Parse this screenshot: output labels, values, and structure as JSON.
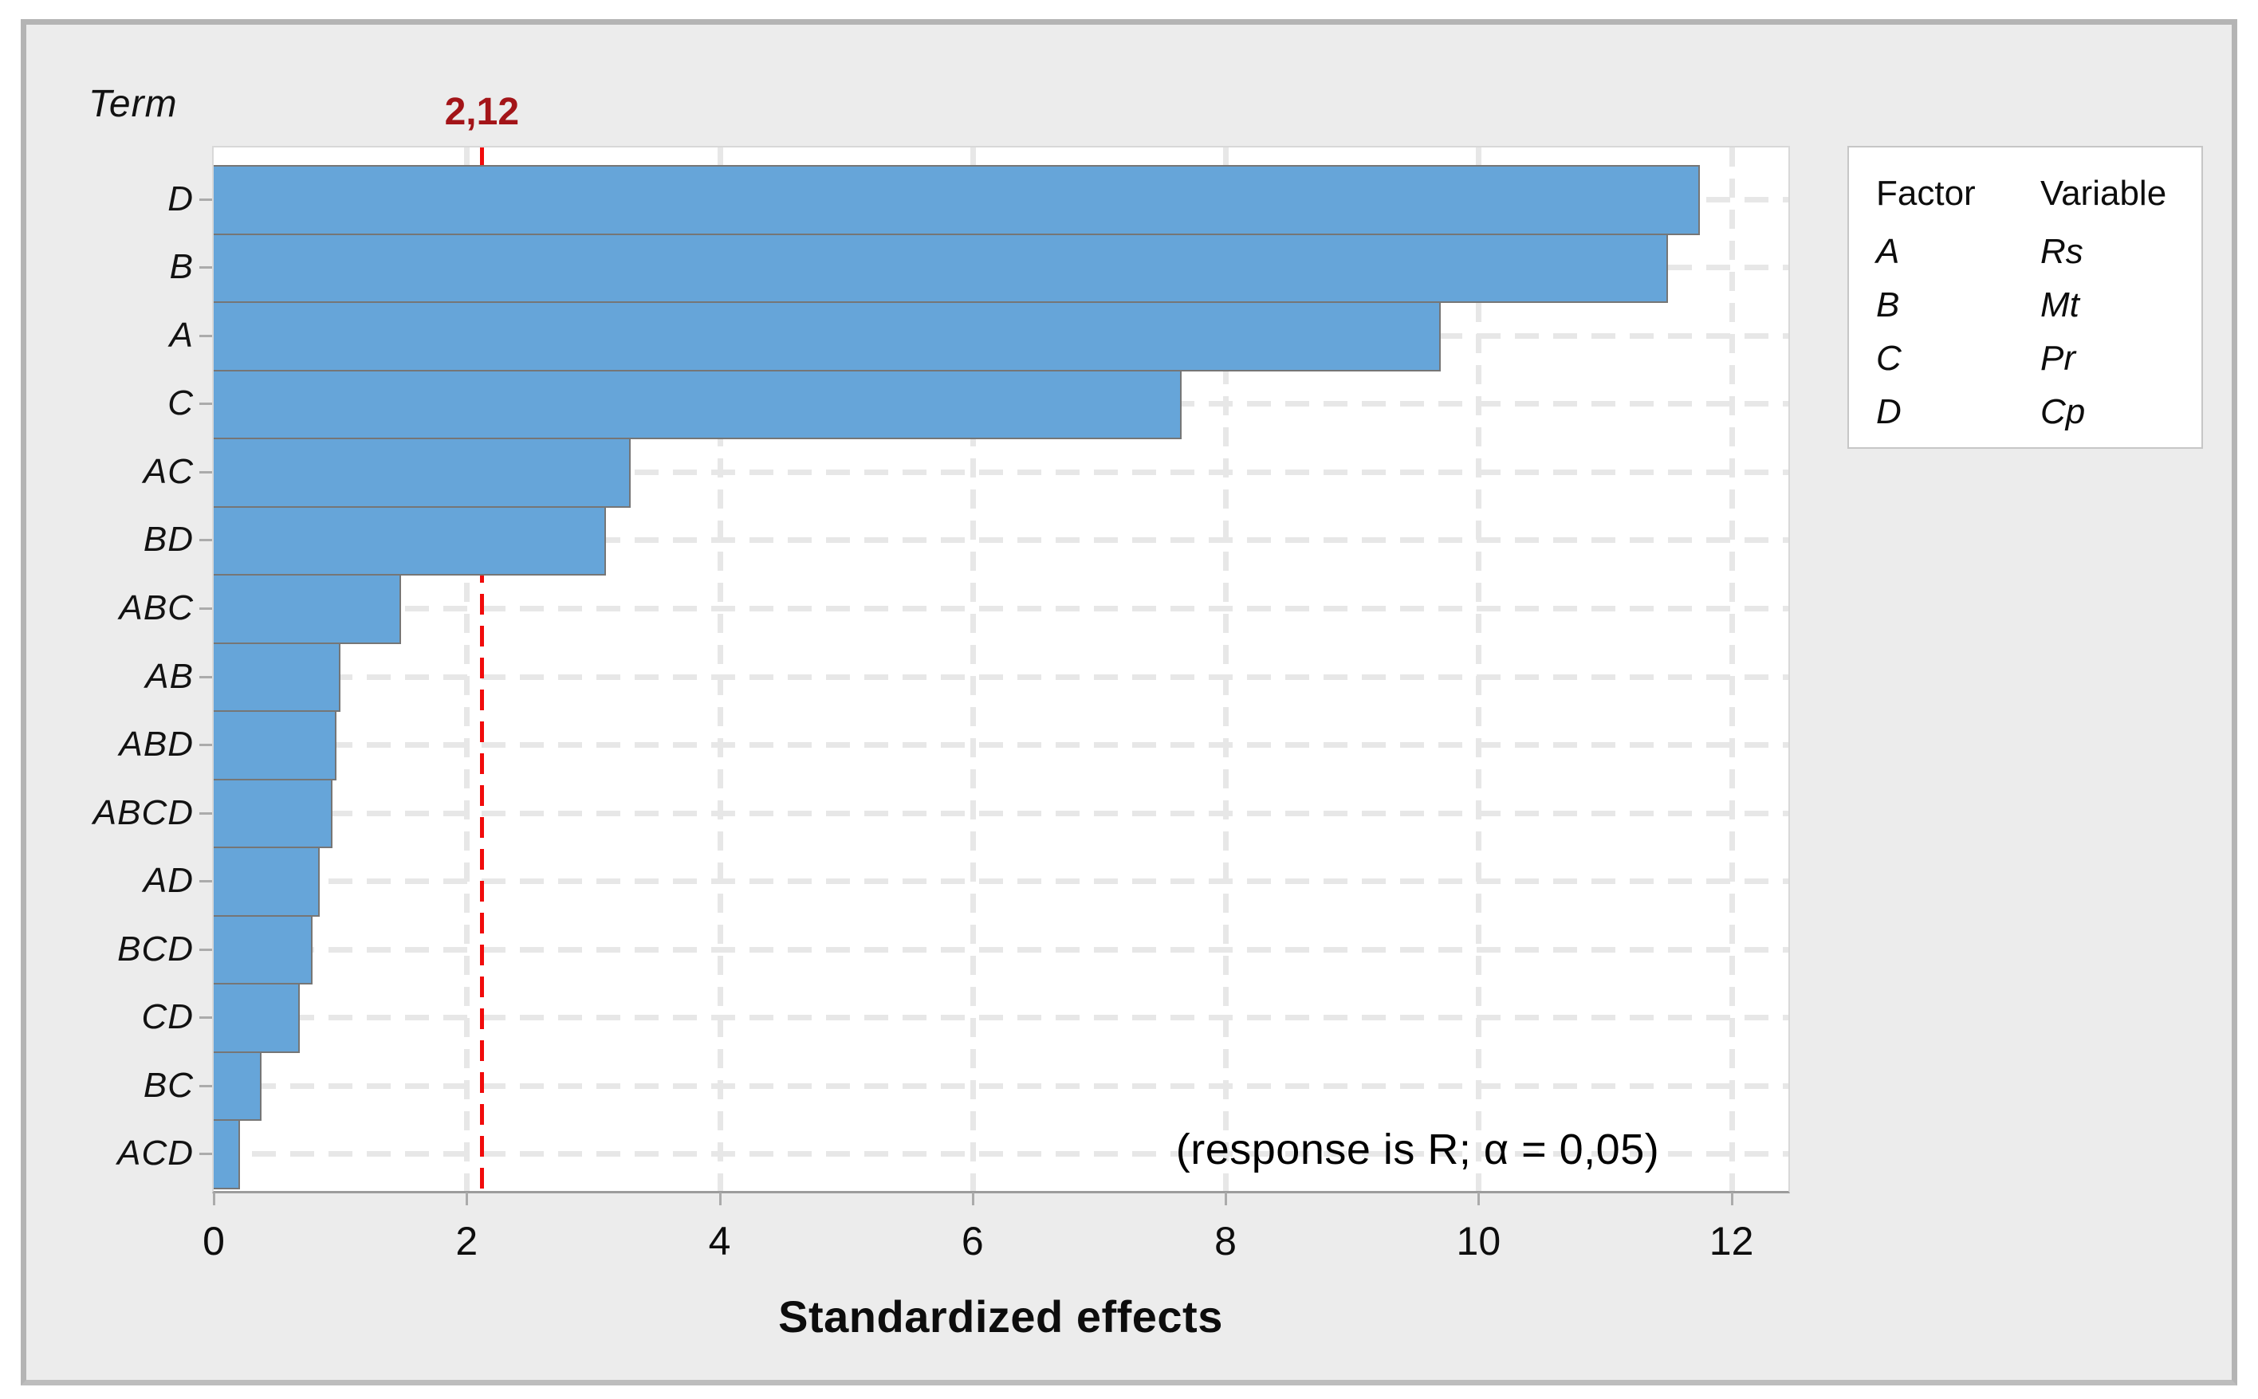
{
  "chart_data": {
    "type": "bar",
    "orientation": "horizontal",
    "categories": [
      "D",
      "B",
      "A",
      "C",
      "AC",
      "BD",
      "ABC",
      "AB",
      "ABD",
      "ABCD",
      "AD",
      "BCD",
      "CD",
      "BC",
      "ACD"
    ],
    "values": [
      11.75,
      11.5,
      9.7,
      7.65,
      3.3,
      3.1,
      1.48,
      1.0,
      0.97,
      0.94,
      0.84,
      0.78,
      0.68,
      0.38,
      0.21
    ],
    "xlabel": "Standardized effects",
    "ylabel": "Term",
    "x_ticks": [
      0,
      2,
      4,
      6,
      8,
      10,
      12
    ],
    "xlim": [
      0,
      12.45
    ],
    "grid": true,
    "reference_line": {
      "value": 2.12,
      "label": "2,12"
    },
    "annotation": "(response is R; α = 0,05)",
    "colors": {
      "bar_fill": "#66A5D9",
      "bar_border": "#767676",
      "reference_line": "#F10B0B",
      "reference_label": "#A31418",
      "gridline": "#E7E7E7",
      "panel_background": "#ECECEC",
      "plot_background": "#FFFFFF"
    }
  },
  "legend": {
    "headers": [
      "Factor",
      "Variable"
    ],
    "rows": [
      [
        "A",
        "Rs"
      ],
      [
        "B",
        "Mt"
      ],
      [
        "C",
        "Pr"
      ],
      [
        "D",
        "Cp"
      ]
    ]
  }
}
